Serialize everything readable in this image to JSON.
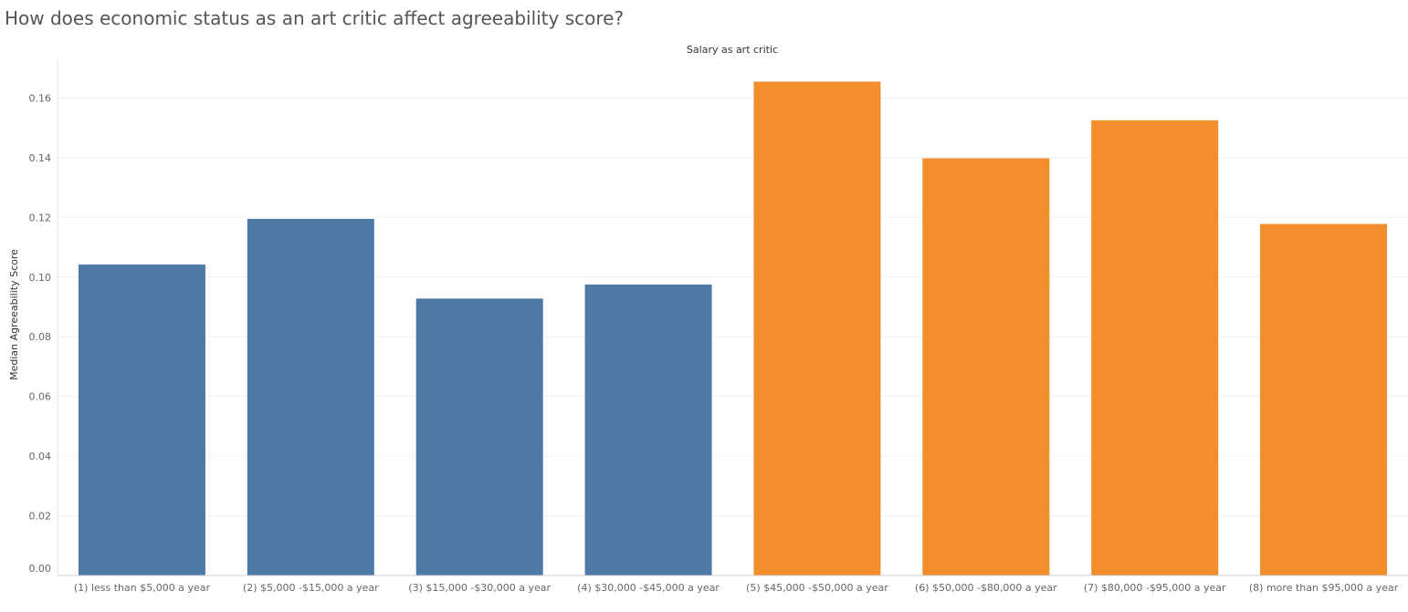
{
  "page": {
    "title": "How does economic status as an art critic affect agreeability score?"
  },
  "chart_data": {
    "type": "bar",
    "column_header": "Salary as art critic",
    "ylabel": "Median Agreeability Score",
    "xlabel": "",
    "ylim": [
      0,
      0.17
    ],
    "yticks": [
      "0.00",
      "0.02",
      "0.04",
      "0.06",
      "0.08",
      "0.10",
      "0.12",
      "0.14",
      "0.16"
    ],
    "grid": true,
    "categories": [
      "(1) less than $5,000 a year",
      "(2) $5,000 -$15,000 a year",
      "(3) $15,000 -$30,000 a year",
      "(4) $30,000 -$45,000 a year",
      "(5) $45,000 -$50,000 a year",
      "(6) $50,000 -$80,000 a year",
      "(7) $80,000 -$95,000 a year",
      "(8) more than $95,000 a year"
    ],
    "values": [
      0.1042,
      0.1195,
      0.0928,
      0.0975,
      0.1655,
      0.1398,
      0.1525,
      0.1178
    ],
    "bar_colors": [
      "#4e79a7",
      "#4e79a7",
      "#4e79a7",
      "#4e79a7",
      "#f28e2b",
      "#f28e2b",
      "#f28e2b",
      "#f28e2b"
    ]
  }
}
